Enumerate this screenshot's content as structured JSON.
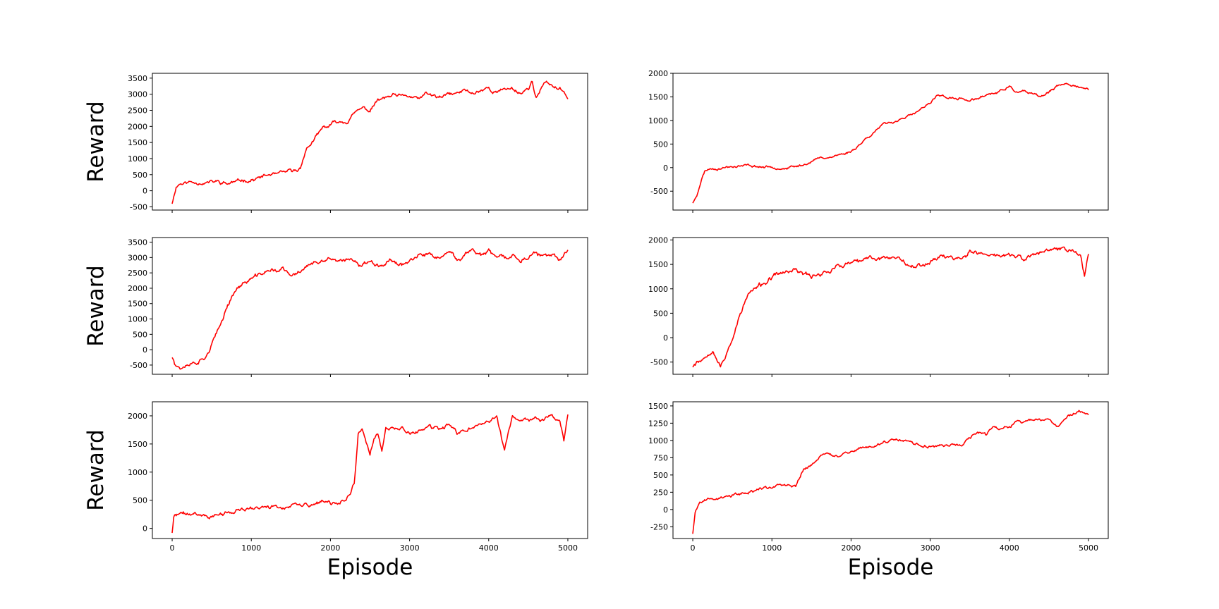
{
  "figure": {
    "row_ylabel": "Reward",
    "col_xlabel": "Episode",
    "line_color": "#ff0000"
  },
  "chart_data": [
    {
      "type": "line",
      "row": 0,
      "col": 0,
      "title": "",
      "xlabel": "",
      "ylabel": "Reward",
      "xlim": [
        -250,
        5250
      ],
      "ylim": [
        -600,
        3650
      ],
      "xticks": [
        0,
        1000,
        2000,
        3000,
        4000,
        5000
      ],
      "yticks": [
        -500,
        0,
        500,
        1000,
        1500,
        2000,
        2500,
        3000,
        3500
      ],
      "show_xtick_labels": false,
      "grid": false,
      "series": [
        {
          "color": "#ff0000",
          "noise": 90,
          "seed": 11,
          "x": [
            0,
            50,
            100,
            200,
            400,
            600,
            700,
            800,
            1000,
            1200,
            1400,
            1550,
            1620,
            1650,
            1700,
            1800,
            1900,
            2000,
            2100,
            2200,
            2300,
            2400,
            2500,
            2600,
            2700,
            2800,
            2900,
            3000,
            3100,
            3200,
            3300,
            3400,
            3500,
            3600,
            3700,
            3800,
            3900,
            4000,
            4100,
            4200,
            4300,
            4400,
            4500,
            4550,
            4600,
            4700,
            4800,
            4900,
            5000
          ],
          "y": [
            -400,
            150,
            250,
            300,
            300,
            320,
            280,
            330,
            400,
            480,
            550,
            600,
            700,
            1000,
            1300,
            1600,
            1900,
            2000,
            2150,
            2200,
            2450,
            2600,
            2500,
            2800,
            2850,
            2900,
            2850,
            2850,
            2800,
            2950,
            2900,
            2850,
            2950,
            3000,
            3100,
            3000,
            3100,
            3150,
            3050,
            3150,
            3150,
            3050,
            3200,
            3400,
            2900,
            3300,
            3250,
            3150,
            2950
          ]
        }
      ]
    },
    {
      "type": "line",
      "row": 0,
      "col": 1,
      "title": "",
      "xlabel": "",
      "ylabel": "",
      "xlim": [
        -250,
        5250
      ],
      "ylim": [
        -900,
        2000
      ],
      "xticks": [
        0,
        1000,
        2000,
        3000,
        4000,
        5000
      ],
      "yticks": [
        -500,
        0,
        500,
        1000,
        1500,
        2000
      ],
      "show_xtick_labels": false,
      "grid": false,
      "series": [
        {
          "color": "#ff0000",
          "noise": 40,
          "seed": 23,
          "x": [
            0,
            50,
            100,
            150,
            200,
            400,
            600,
            800,
            1000,
            1200,
            1400,
            1600,
            1800,
            1900,
            2000,
            2100,
            2200,
            2300,
            2400,
            2500,
            2600,
            2700,
            2800,
            2900,
            3000,
            3100,
            3200,
            3300,
            3400,
            3500,
            3600,
            3700,
            3800,
            3900,
            4000,
            4100,
            4200,
            4300,
            4400,
            4500,
            4600,
            4700,
            4800,
            4900,
            5000
          ],
          "y": [
            -750,
            -600,
            -300,
            -80,
            -30,
            0,
            10,
            0,
            -20,
            0,
            80,
            200,
            260,
            280,
            350,
            500,
            650,
            780,
            900,
            950,
            1050,
            1100,
            1150,
            1250,
            1350,
            1550,
            1500,
            1450,
            1450,
            1400,
            1450,
            1550,
            1600,
            1650,
            1750,
            1600,
            1600,
            1550,
            1500,
            1600,
            1700,
            1750,
            1750,
            1700,
            1650
          ]
        }
      ]
    },
    {
      "type": "line",
      "row": 1,
      "col": 0,
      "title": "",
      "xlabel": "",
      "ylabel": "Reward",
      "xlim": [
        -250,
        5250
      ],
      "ylim": [
        -800,
        3650
      ],
      "xticks": [
        0,
        1000,
        2000,
        3000,
        4000,
        5000
      ],
      "yticks": [
        -500,
        0,
        500,
        1000,
        1500,
        2000,
        2500,
        3000,
        3500
      ],
      "show_xtick_labels": false,
      "grid": false,
      "series": [
        {
          "color": "#ff0000",
          "noise": 110,
          "seed": 37,
          "x": [
            0,
            50,
            100,
            200,
            300,
            400,
            450,
            500,
            600,
            700,
            800,
            900,
            1000,
            1100,
            1200,
            1300,
            1400,
            1500,
            1600,
            1700,
            1800,
            1900,
            2000,
            2100,
            2200,
            2300,
            2400,
            2500,
            2600,
            2700,
            2800,
            2900,
            3000,
            3100,
            3200,
            3300,
            3400,
            3500,
            3600,
            3700,
            3800,
            3900,
            4000,
            4100,
            4200,
            4300,
            4400,
            4500,
            4600,
            4700,
            4800,
            4900,
            5000
          ],
          "y": [
            -250,
            -450,
            -550,
            -500,
            -450,
            -350,
            -200,
            100,
            600,
            1400,
            1900,
            2100,
            2300,
            2400,
            2550,
            2600,
            2650,
            2400,
            2550,
            2750,
            2800,
            2750,
            2900,
            2750,
            2800,
            2900,
            2750,
            2850,
            2850,
            2900,
            2900,
            2800,
            2950,
            2950,
            3000,
            2900,
            2900,
            3000,
            2800,
            3100,
            3300,
            3100,
            3200,
            3000,
            3000,
            3050,
            2950,
            3000,
            3050,
            2900,
            2900,
            2850,
            3200
          ]
        }
      ]
    },
    {
      "type": "line",
      "row": 1,
      "col": 1,
      "title": "",
      "xlabel": "",
      "ylabel": "",
      "xlim": [
        -250,
        5250
      ],
      "ylim": [
        -750,
        2050
      ],
      "xticks": [
        0,
        1000,
        2000,
        3000,
        4000,
        5000
      ],
      "yticks": [
        -500,
        0,
        500,
        1000,
        1500,
        2000
      ],
      "show_xtick_labels": false,
      "grid": false,
      "series": [
        {
          "color": "#ff0000",
          "noise": 75,
          "seed": 53,
          "x": [
            0,
            50,
            150,
            250,
            300,
            350,
            400,
            500,
            600,
            700,
            800,
            900,
            1000,
            1100,
            1200,
            1300,
            1400,
            1500,
            1600,
            1700,
            1800,
            1900,
            2000,
            2100,
            2200,
            2300,
            2400,
            2500,
            2600,
            2700,
            2800,
            2900,
            3000,
            3100,
            3200,
            3300,
            3400,
            3500,
            3600,
            3700,
            3800,
            3900,
            4000,
            4100,
            4200,
            4300,
            4400,
            4500,
            4600,
            4700,
            4800,
            4900,
            4950,
            5000
          ],
          "y": [
            -600,
            -450,
            -350,
            -150,
            -350,
            -550,
            -450,
            0,
            500,
            900,
            1000,
            1100,
            1200,
            1300,
            1350,
            1400,
            1350,
            1300,
            1350,
            1400,
            1450,
            1450,
            1500,
            1500,
            1550,
            1600,
            1600,
            1650,
            1650,
            1600,
            1550,
            1500,
            1600,
            1700,
            1700,
            1650,
            1700,
            1800,
            1750,
            1750,
            1700,
            1700,
            1700,
            1650,
            1600,
            1700,
            1700,
            1750,
            1750,
            1800,
            1750,
            1650,
            1250,
            1750
          ]
        }
      ]
    },
    {
      "type": "line",
      "row": 2,
      "col": 0,
      "title": "",
      "xlabel": "Episode",
      "ylabel": "Reward",
      "xlim": [
        -250,
        5250
      ],
      "ylim": [
        -180,
        2250
      ],
      "xticks": [
        0,
        1000,
        2000,
        3000,
        4000,
        5000
      ],
      "yticks": [
        0,
        500,
        1000,
        1500,
        2000
      ],
      "show_xtick_labels": true,
      "grid": false,
      "series": [
        {
          "color": "#ff0000",
          "noise": 55,
          "seed": 71,
          "x": [
            0,
            20,
            50,
            100,
            300,
            500,
            700,
            900,
            1100,
            1300,
            1500,
            1700,
            1900,
            2000,
            2100,
            2200,
            2250,
            2300,
            2350,
            2400,
            2450,
            2500,
            2550,
            2600,
            2650,
            2700,
            2800,
            2900,
            3000,
            3100,
            3200,
            3300,
            3400,
            3500,
            3600,
            3700,
            3800,
            3900,
            4000,
            4100,
            4150,
            4200,
            4250,
            4300,
            4400,
            4500,
            4600,
            4700,
            4800,
            4900,
            4950,
            5000
          ],
          "y": [
            -80,
            200,
            220,
            250,
            270,
            260,
            280,
            320,
            360,
            400,
            430,
            450,
            470,
            420,
            450,
            500,
            650,
            800,
            1650,
            1750,
            1500,
            1250,
            1600,
            1650,
            1350,
            1750,
            1800,
            1800,
            1700,
            1750,
            1800,
            1800,
            1750,
            1850,
            1700,
            1800,
            1850,
            1850,
            1950,
            2000,
            1700,
            1350,
            1700,
            2000,
            1900,
            1950,
            1950,
            1900,
            1950,
            1850,
            1500,
            2000
          ]
        }
      ]
    },
    {
      "type": "line",
      "row": 2,
      "col": 1,
      "title": "",
      "xlabel": "Episode",
      "ylabel": "",
      "xlim": [
        -250,
        5250
      ],
      "ylim": [
        -420,
        1560
      ],
      "xticks": [
        0,
        1000,
        2000,
        3000,
        4000,
        5000
      ],
      "yticks": [
        -250,
        0,
        250,
        500,
        750,
        1000,
        1250,
        1500
      ],
      "show_xtick_labels": true,
      "grid": false,
      "series": [
        {
          "color": "#ff0000",
          "noise": 35,
          "seed": 89,
          "x": [
            0,
            30,
            80,
            150,
            300,
            500,
            700,
            900,
            1100,
            1300,
            1350,
            1400,
            1500,
            1600,
            1700,
            1800,
            1900,
            2000,
            2100,
            2200,
            2300,
            2400,
            2500,
            2600,
            2700,
            2800,
            2900,
            3000,
            3100,
            3200,
            3300,
            3400,
            3500,
            3600,
            3700,
            3800,
            3900,
            4000,
            4100,
            4200,
            4300,
            4400,
            4500,
            4600,
            4700,
            4800,
            4900,
            5000
          ],
          "y": [
            -350,
            -50,
            80,
            130,
            160,
            200,
            260,
            310,
            330,
            300,
            450,
            580,
            650,
            780,
            820,
            800,
            800,
            830,
            880,
            900,
            950,
            980,
            1000,
            980,
            1000,
            950,
            950,
            950,
            900,
            950,
            950,
            930,
            1000,
            1100,
            1050,
            1200,
            1150,
            1200,
            1250,
            1250,
            1300,
            1300,
            1300,
            1200,
            1350,
            1400,
            1450,
            1400
          ]
        }
      ]
    }
  ]
}
